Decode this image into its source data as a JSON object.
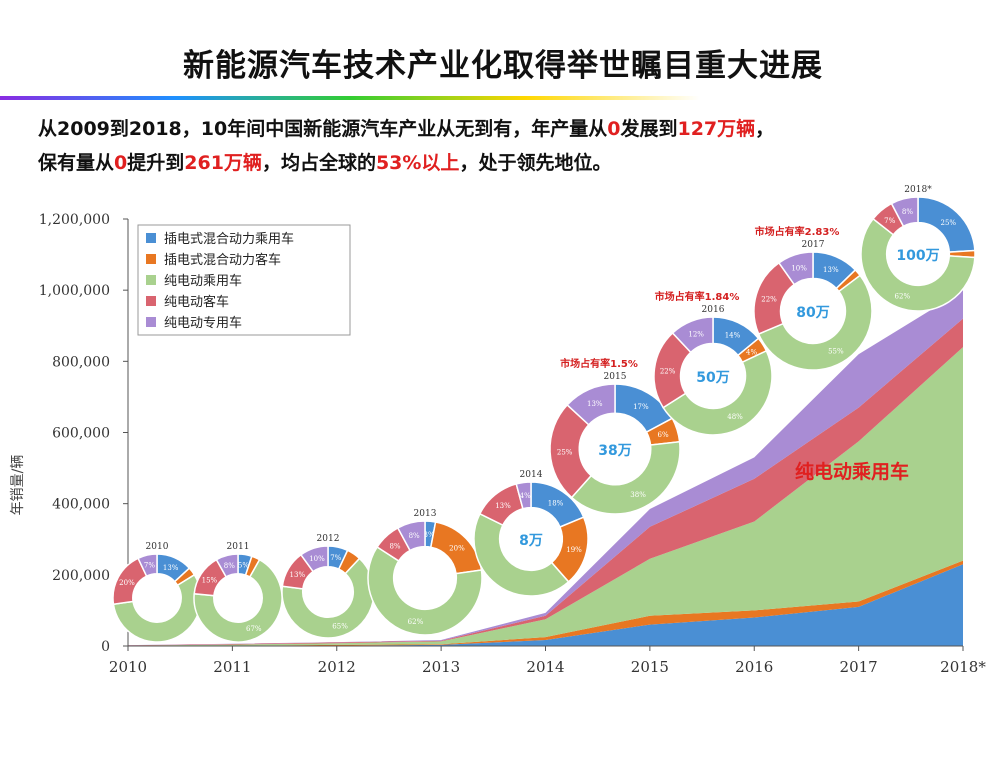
{
  "slide": {
    "title": "新能源汽车技术产业化取得举世瞩目重大进展",
    "line1": [
      {
        "text": "从2009到2018，10年间中国新能源汽车产业从无到有，年产量从",
        "red": false
      },
      {
        "text": "0",
        "red": true
      },
      {
        "text": "发展到",
        "red": false
      },
      {
        "text": "127万辆",
        "red": true
      },
      {
        "text": "，",
        "red": false
      }
    ],
    "line2": [
      {
        "text": "保有量从",
        "red": false
      },
      {
        "text": "0",
        "red": true
      },
      {
        "text": "提升到",
        "red": false
      },
      {
        "text": "261万辆",
        "red": true
      },
      {
        "text": "，均占全球的",
        "red": false
      },
      {
        "text": "53%以上",
        "red": true
      },
      {
        "text": "，处于领先地位。",
        "red": false
      }
    ]
  },
  "chart_data": {
    "type": "area",
    "stacked": true,
    "ylabel": "年销量/辆",
    "categories": [
      "2010",
      "2011",
      "2012",
      "2013",
      "2014",
      "2015",
      "2016",
      "2017",
      "2018*"
    ],
    "ylim": [
      0,
      1200000
    ],
    "yticks": [
      0,
      200000,
      400000,
      600000,
      800000,
      1000000,
      1200000
    ],
    "ytick_labels": [
      "0",
      "200,000",
      "400,000",
      "600,000",
      "800,000",
      "1,000,000",
      "1,200,000"
    ],
    "legend_position": "top-left",
    "series": [
      {
        "name": "插电式混合动力乘用车",
        "color": "#4a8fd4",
        "values": [
          0,
          0,
          1000,
          3000,
          17000,
          60000,
          80000,
          110000,
          230000
        ]
      },
      {
        "name": "插电式混合动力客车",
        "color": "#e87722",
        "values": [
          500,
          1000,
          2000,
          2000,
          8000,
          25000,
          20000,
          15000,
          10000
        ]
      },
      {
        "name": "纯电动乘用车",
        "color": "#a9d18e",
        "values": [
          1000,
          3000,
          5000,
          8000,
          50000,
          160000,
          250000,
          450000,
          600000
        ]
      },
      {
        "name": "纯电动客车",
        "color": "#d9646f",
        "values": [
          500,
          1500,
          2000,
          2000,
          10000,
          90000,
          120000,
          95000,
          80000
        ]
      },
      {
        "name": "纯电动专用车",
        "color": "#a98cd4",
        "values": [
          500,
          1000,
          1000,
          2000,
          8000,
          50000,
          60000,
          150000,
          80000
        ]
      }
    ],
    "area_label": "纯电动乘用车",
    "area_label_color": "#e02020",
    "donut_colors": [
      "#4a8fd4",
      "#e87722",
      "#a9d18e",
      "#d9646f",
      "#a98cd4"
    ],
    "donuts": [
      {
        "year": "2010",
        "values": [
          13,
          3,
          56,
          20,
          7
        ],
        "labels": [
          "13%",
          "",
          "",
          "20%",
          "7%"
        ],
        "center": "",
        "share": ""
      },
      {
        "year": "2011",
        "values": [
          5,
          3,
          67,
          15,
          8
        ],
        "labels": [
          "5%",
          "",
          "67%",
          "15%",
          "8%"
        ],
        "center": "",
        "share": ""
      },
      {
        "year": "2012",
        "values": [
          7,
          5,
          65,
          13,
          10
        ],
        "labels": [
          "7%",
          "",
          "65%",
          "13%",
          "10%"
        ],
        "center": "",
        "share": ""
      },
      {
        "year": "2013",
        "values": [
          3,
          20,
          62,
          8,
          8
        ],
        "labels": [
          "3%",
          "20%",
          "62%",
          "8%",
          "8%"
        ],
        "center": "",
        "share": ""
      },
      {
        "year": "2014",
        "values": [
          18,
          19,
          42,
          13,
          4
        ],
        "labels": [
          "18%",
          "19%",
          "",
          "13%",
          "4%"
        ],
        "center": "8万",
        "share": ""
      },
      {
        "year": "2015",
        "values": [
          17,
          6,
          38,
          25,
          13
        ],
        "labels": [
          "17%",
          "6%",
          "38%",
          "25%",
          "13%"
        ],
        "center": "38万",
        "share": "市场占有率1.5%"
      },
      {
        "year": "2016",
        "values": [
          14,
          4,
          48,
          22,
          12
        ],
        "labels": [
          "14%",
          "4%",
          "48%",
          "22%",
          "12%"
        ],
        "center": "50万",
        "share": "市场占有率1.84%"
      },
      {
        "year": "2017",
        "values": [
          13,
          2,
          55,
          22,
          10
        ],
        "labels": [
          "13%",
          "",
          "55%",
          "22%",
          "10%"
        ],
        "center": "80万",
        "share": "市场占有率2.83%"
      },
      {
        "year": "2018*",
        "values": [
          25,
          2,
          62,
          7,
          8
        ],
        "labels": [
          "25%",
          "",
          "62%",
          "7%",
          "8%"
        ],
        "center": "100万",
        "share": ""
      }
    ]
  }
}
